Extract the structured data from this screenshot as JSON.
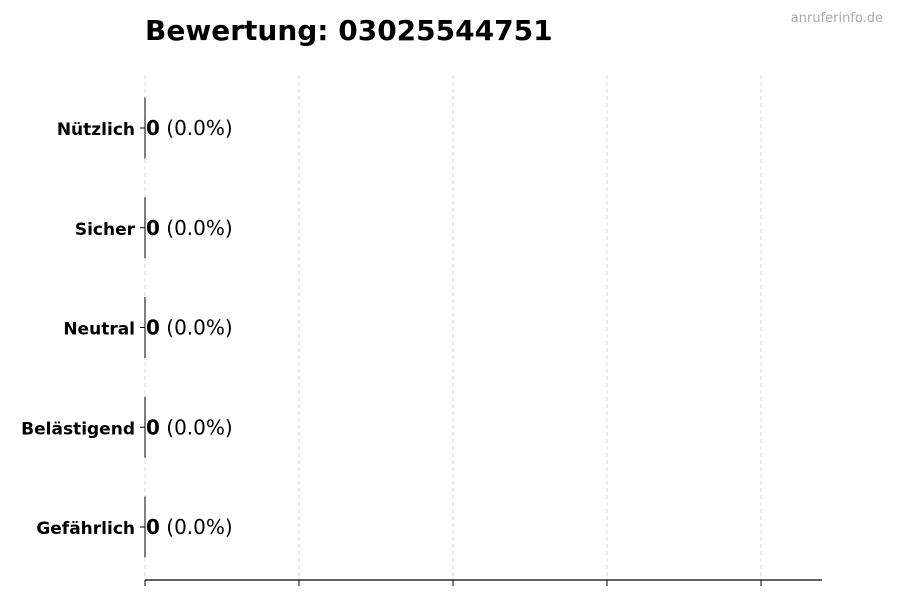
{
  "chart_data": {
    "type": "bar",
    "orientation": "horizontal",
    "title": "Bewertung: 03025544751",
    "watermark": "anruferinfo.de",
    "categories": [
      "Nützlich",
      "Sicher",
      "Neutral",
      "Belästigend",
      "Gefährlich"
    ],
    "values": [
      0,
      0,
      0,
      0,
      0
    ],
    "value_labels": [
      "0",
      "0",
      "0",
      "0",
      "0"
    ],
    "percent_labels": [
      "(0.0%)",
      "(0.0%)",
      "(0.0%)",
      "(0.0%)",
      "(0.0%)"
    ],
    "xlabel": "",
    "ylabel": "",
    "x_ticks_shown_without_labels": 5,
    "grid": "x, dashed",
    "colors": {
      "text": "#000000",
      "grid": "#d9d9d9",
      "watermark": "#aaaaaa"
    }
  }
}
